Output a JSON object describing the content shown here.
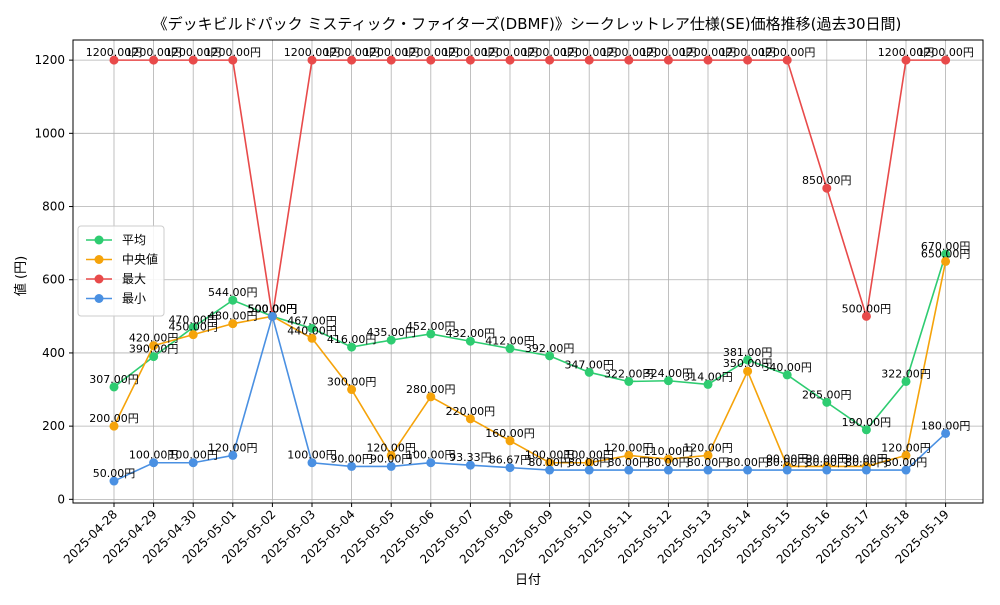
{
  "chart_data": {
    "type": "line",
    "title": "《デッキビルドパック ミスティック・ファイターズ(DBMF)》シークレットレア仕様(SE)価格推移(過去30日間)",
    "xlabel": "日付",
    "ylabel": "値 (円)",
    "ylim": [
      -10,
      1255
    ],
    "yticks": [
      0,
      200,
      400,
      600,
      800,
      1000,
      1200
    ],
    "grid": true,
    "legend_position": "center-left",
    "categories": [
      "2025-04-28",
      "2025-04-29",
      "2025-04-30",
      "2025-05-01",
      "2025-05-02",
      "2025-05-03",
      "2025-05-04",
      "2025-05-05",
      "2025-05-06",
      "2025-05-07",
      "2025-05-08",
      "2025-05-09",
      "2025-05-10",
      "2025-05-11",
      "2025-05-12",
      "2025-05-13",
      "2025-05-14",
      "2025-05-15",
      "2025-05-16",
      "2025-05-17",
      "2025-05-18",
      "2025-05-19"
    ],
    "series": [
      {
        "name": "平均",
        "color": "#2ecc71",
        "values": [
          307,
          390,
          470,
          544,
          500,
          467,
          416,
          435,
          452,
          432,
          412,
          392,
          347,
          322,
          324,
          314,
          381,
          340,
          265,
          190,
          322,
          670
        ],
        "labels": [
          "307.00円",
          "390.00円",
          "470.00円",
          "544.00円",
          "500.00円",
          "467.00円",
          "416.00円",
          "435.00円",
          "452.00円",
          "432.00円",
          "412.00円",
          "392.00円",
          "347.00円",
          "322.00円",
          "324.00円",
          "314.00円",
          "381.00円",
          "340.00円",
          "265.00円",
          "190.00円",
          "322.00円",
          "670.00円"
        ]
      },
      {
        "name": "中央値",
        "color": "#f5a30a",
        "values": [
          200,
          420,
          450,
          480,
          500,
          440,
          300,
          120,
          280,
          220,
          160,
          100,
          100,
          120,
          110,
          120,
          350,
          90,
          90,
          90,
          120,
          650
        ],
        "labels": [
          "200.00円",
          "420.00円",
          "450.00円",
          "480.00円",
          "500.00円",
          "440.00円",
          "300.00円",
          "120.00円",
          "280.00円",
          "220.00円",
          "160.00円",
          "100.00円",
          "100.00円",
          "120.00円",
          "110.00円",
          "120.00円",
          "350.00円",
          "90.00円",
          "90.00円",
          "90.00円",
          "120.00円",
          "650.00円"
        ]
      },
      {
        "name": "最大",
        "color": "#e84a4a",
        "values": [
          1200,
          1200,
          1200,
          1200,
          500,
          1200,
          1200,
          1200,
          1200,
          1200,
          1200,
          1200,
          1200,
          1200,
          1200,
          1200,
          1200,
          1200,
          850,
          500,
          1200,
          1200
        ],
        "labels": [
          "1200.00円",
          "1200.00円",
          "1200.00円",
          "1200.00円",
          "500.00円",
          "1200.00円",
          "1200.00円",
          "1200.00円",
          "1200.00円",
          "1200.00円",
          "1200.00円",
          "1200.00円",
          "1200.00円",
          "1200.00円",
          "1200.00円",
          "1200.00円",
          "1200.00円",
          "1200.00円",
          "850.00円",
          "500.00円",
          "1200.00円",
          "1200.00円"
        ]
      },
      {
        "name": "最小",
        "color": "#4a90e2",
        "values": [
          50,
          100,
          100,
          120,
          500,
          100,
          90,
          90,
          100,
          93.33,
          86.67,
          80,
          80,
          80,
          80,
          80,
          80,
          80,
          80,
          80,
          80,
          180
        ],
        "labels": [
          "50.00円",
          "100.00円",
          "100.00円",
          "120.00円",
          "500.00円",
          "100.00円",
          "90.00円",
          "90.00円",
          "100.00円",
          "93.33円",
          "86.67円",
          "80.00円",
          "80.00円",
          "80.00円",
          "80.00円",
          "80.00円",
          "80.00円",
          "80.00円",
          "80.00円",
          "80.00円",
          "80.00円",
          "180.00円"
        ]
      }
    ]
  }
}
